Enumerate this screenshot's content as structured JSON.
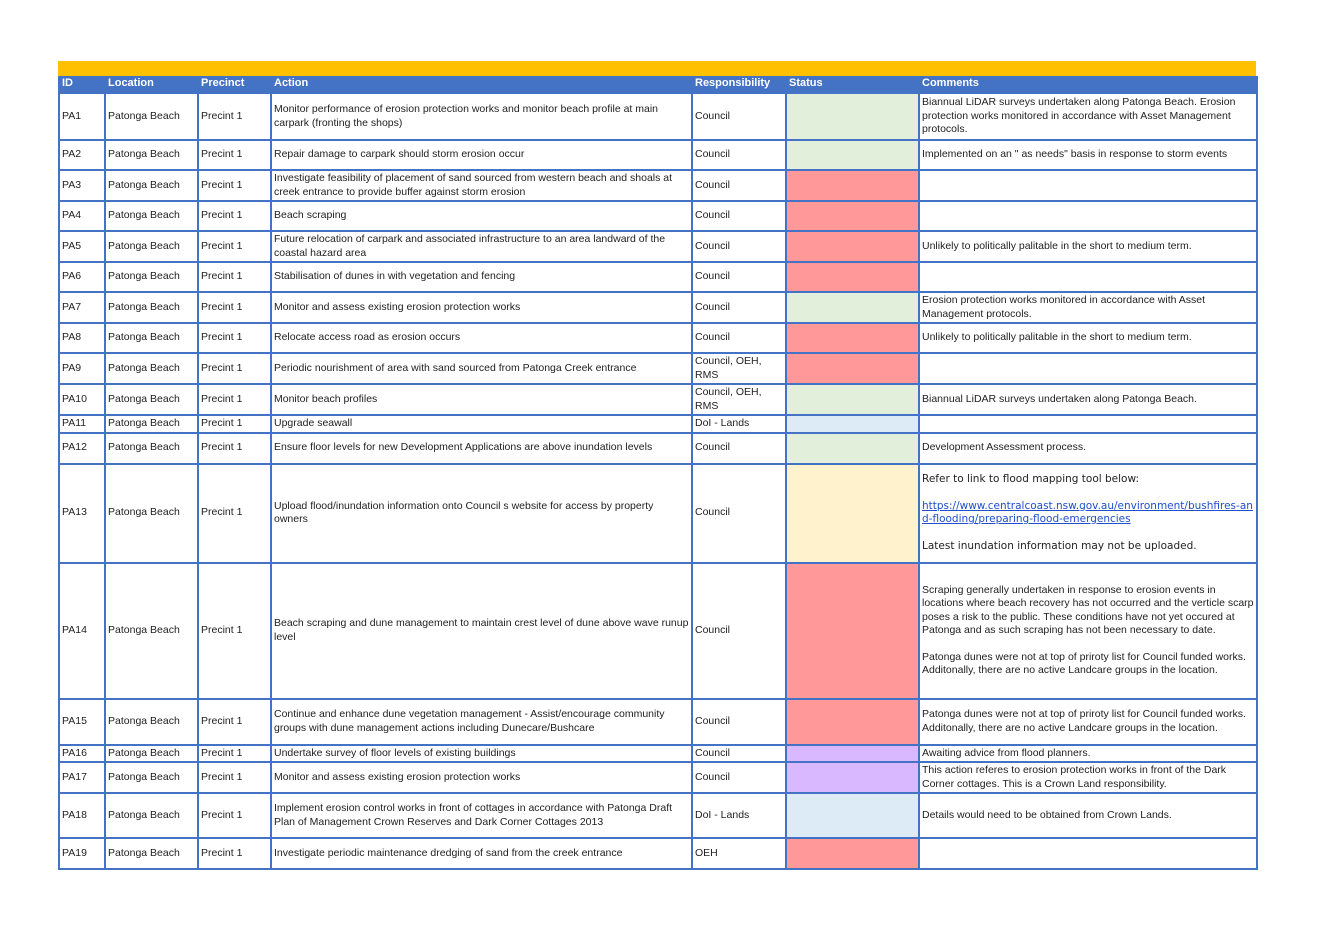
{
  "colors": {
    "header_bar": "#ffc000",
    "header_bg": "#4472c4",
    "border": "#4472c4",
    "status": {
      "green": "#e2efda",
      "red": "#ff9999",
      "blue": "#ddebf7",
      "yellow": "#fff2cc",
      "purple": "#d9b8ff"
    }
  },
  "headers": {
    "id": "ID",
    "location": "Location",
    "precinct": "Precinct",
    "action": "Action",
    "responsibility": "Responsibility",
    "status": "Status",
    "comments": "Comments"
  },
  "rows": [
    {
      "id": "PA1",
      "location": "Patonga Beach",
      "precinct": "Precint 1",
      "action": "Monitor performance of erosion protection works and monitor beach profile at main carpark (fronting the shops)",
      "responsibility": "Council",
      "status": "green",
      "comments": [
        "Biannual LiDAR surveys undertaken along Patonga Beach. Erosion protection works monitored in accordance with Asset Management protocols."
      ]
    },
    {
      "id": "PA2",
      "location": "Patonga Beach",
      "precinct": "Precint 1",
      "action": "Repair damage to carpark should storm erosion occur",
      "responsibility": "Council",
      "status": "green",
      "comments": [
        "Implemented on an \"  as needs\"   basis in response to storm events"
      ]
    },
    {
      "id": "PA3",
      "location": "Patonga Beach",
      "precinct": "Precint 1",
      "action": "Investigate feasibility of placement of sand sourced from western beach and shoals at creek entrance to provide buffer against storm erosion",
      "responsibility": "Council",
      "status": "red",
      "comments": []
    },
    {
      "id": "PA4",
      "location": "Patonga Beach",
      "precinct": "Precint 1",
      "action": "Beach scraping",
      "responsibility": "Council",
      "status": "red",
      "comments": []
    },
    {
      "id": "PA5",
      "location": "Patonga Beach",
      "precinct": "Precint 1",
      "action": "Future relocation of carpark and associated infrastructure to an area landward of the coastal hazard area",
      "responsibility": "Council",
      "status": "red",
      "comments": [
        "Unlikely to politically palitable in the short to medium term."
      ]
    },
    {
      "id": "PA6",
      "location": "Patonga Beach",
      "precinct": "Precint 1",
      "action": "Stabilisation of dunes in with vegetation and fencing",
      "responsibility": "Council",
      "status": "red",
      "comments": []
    },
    {
      "id": "PA7",
      "location": "Patonga Beach",
      "precinct": "Precint 1",
      "action": "Monitor and assess existing erosion protection works",
      "responsibility": "Council",
      "status": "green",
      "comments": [
        "Erosion protection works monitored in accordance with Asset Management protocols."
      ]
    },
    {
      "id": "PA8",
      "location": "Patonga Beach",
      "precinct": "Precint 1",
      "action": "Relocate access road as erosion occurs",
      "responsibility": "Council",
      "status": "red",
      "comments": [
        "Unlikely to politically palitable in the short to medium term."
      ]
    },
    {
      "id": "PA9",
      "location": "Patonga Beach",
      "precinct": "Precint 1",
      "action": "Periodic nourishment of area with sand sourced from Patonga Creek entrance",
      "responsibility": "Council, OEH, RMS",
      "status": "red",
      "comments": []
    },
    {
      "id": "PA10",
      "location": "Patonga Beach",
      "precinct": "Precint 1",
      "action": "Monitor beach profiles",
      "responsibility": "Council, OEH, RMS",
      "status": "green",
      "comments": [
        "Biannual LiDAR surveys undertaken along Patonga Beach."
      ]
    },
    {
      "id": "PA11",
      "location": "Patonga Beach",
      "precinct": "Precint 1",
      "action": "Upgrade seawall",
      "responsibility": "DoI - Lands",
      "status": "blue",
      "comments": []
    },
    {
      "id": "PA12",
      "location": "Patonga Beach",
      "precinct": "Precint 1",
      "action": "Ensure floor levels for new Development Applications are above inundation levels",
      "responsibility": "Council",
      "status": "green",
      "comments": [
        "Development Assessment process."
      ]
    },
    {
      "id": "PA13",
      "location": "Patonga Beach",
      "precinct": "Precint 1",
      "action": "Upload flood/inundation information onto Council    s website for access by property owners",
      "responsibility": "Council",
      "status": "yellow",
      "comments": [],
      "comment_intro": "Refer to link to flood mapping tool below:",
      "comment_link": "https://www.centralcoast.nsw.gov.au/environment/bushfires-and-flooding/preparing-flood-emergencies",
      "comment_outro": "Latest inundation information may not be uploaded."
    },
    {
      "id": "PA14",
      "location": "Patonga Beach",
      "precinct": "Precint 1",
      "action": "Beach scraping and dune management to maintain crest level of dune above wave runup level",
      "responsibility": "Council",
      "status": "red",
      "comments": [
        "Scraping generally undertaken in response to erosion events in locations where beach recovery has not occurred and the verticle scarp poses a risk to the public. These conditions have not yet occured at Patonga and as such scraping has not been necessary to date.",
        "Patonga dunes were not at top of priroty list for Council funded works. Additonally, there are no active Landcare groups in the location."
      ]
    },
    {
      "id": "PA15",
      "location": "Patonga Beach",
      "precinct": "Precint 1",
      "action": "Continue and enhance dune vegetation management - Assist/encourage community groups with dune management actions including Dunecare/Bushcare",
      "responsibility": "Council",
      "status": "red",
      "comments": [
        "Patonga dunes were not at top of priroty list for Council funded works. Additonally, there are no active Landcare groups in the location."
      ]
    },
    {
      "id": "PA16",
      "location": "Patonga Beach",
      "precinct": "Precint 1",
      "action": "Undertake survey of  floor levels of existing buildings",
      "responsibility": "Council",
      "status": "purple",
      "comments": [
        "Awaiting advice from flood planners."
      ]
    },
    {
      "id": "PA17",
      "location": "Patonga Beach",
      "precinct": "Precint 1",
      "action": "Monitor and assess existing erosion protection works",
      "responsibility": "Council",
      "status": "purple",
      "comments": [
        "This action referes to erosion protection works in front of the Dark Corner cottages. This is a Crown Land responsibility."
      ]
    },
    {
      "id": "PA18",
      "location": "Patonga Beach",
      "precinct": "Precint 1",
      "action": "Implement erosion control works in front of cottages in accordance with Patonga Draft Plan of Management Crown Reserves and Dark Corner Cottages 2013",
      "responsibility": "DoI - Lands",
      "status": "blue",
      "comments": [
        "Details would need to be obtained from Crown Lands."
      ]
    },
    {
      "id": "PA19",
      "location": "Patonga Beach",
      "precinct": "Precint 1",
      "action": "Investigate periodic maintenance dredging of sand from the creek entrance",
      "responsibility": "OEH",
      "status": "red",
      "comments": []
    }
  ]
}
